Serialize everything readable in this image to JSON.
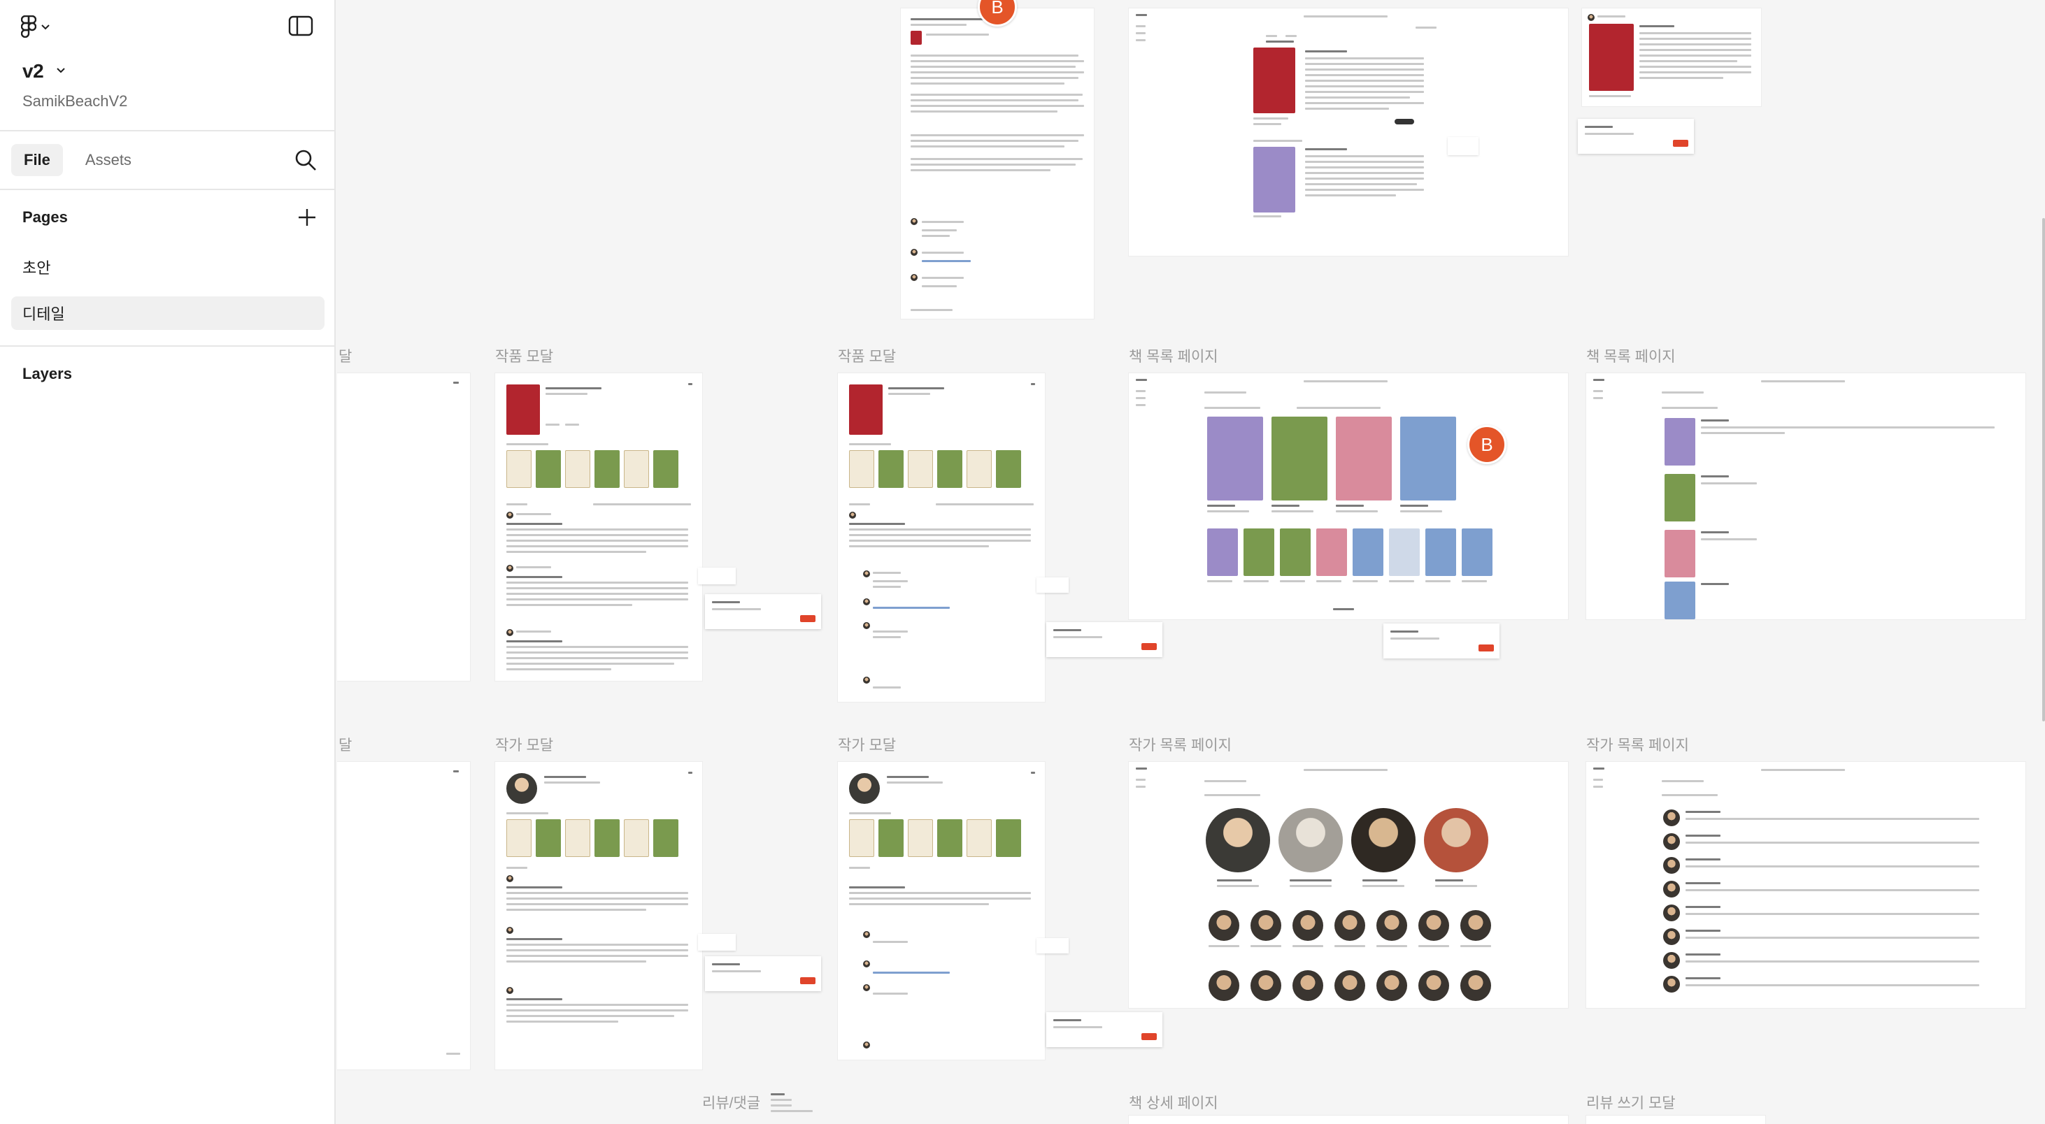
{
  "sidebar": {
    "file_title": "v2",
    "project_name": "SamikBeachV2",
    "tabs": [
      {
        "label": "File",
        "active": true
      },
      {
        "label": "Assets",
        "active": false
      }
    ],
    "pages_heading": "Pages",
    "pages": [
      {
        "label": "초안",
        "selected": false
      },
      {
        "label": "디테일",
        "selected": true
      }
    ],
    "layers_heading": "Layers"
  },
  "canvas": {
    "frame_labels": {
      "row1_partial": "달",
      "work_modal": "작품 모달",
      "book_list": "책 목록 페이지",
      "row2_partial": "달",
      "author_modal": "작가 모달",
      "author_list": "작가 목록 페이지",
      "review_comment": "리뷰/댓글",
      "book_detail": "책 상세 페이지",
      "review_write": "리뷰 쓰기 모달"
    },
    "collaborator_initial": "B"
  },
  "colors": {
    "accent_red": "#e0442a",
    "cursor_orange": "#e45528",
    "sidebar_bg": "#ffffff",
    "canvas_bg": "#f5f5f5",
    "book_purple": "#9b8bc7",
    "book_green": "#7a9a4e",
    "book_pink": "#d98b9c",
    "book_blue": "#7e9fcf",
    "book_red": "#b2252e"
  },
  "icons": {
    "logo": "figma-logo-icon",
    "panel": "sidebar-toggle-icon",
    "search": "search-icon",
    "add": "plus-icon",
    "chevron": "chevron-down-icon"
  }
}
